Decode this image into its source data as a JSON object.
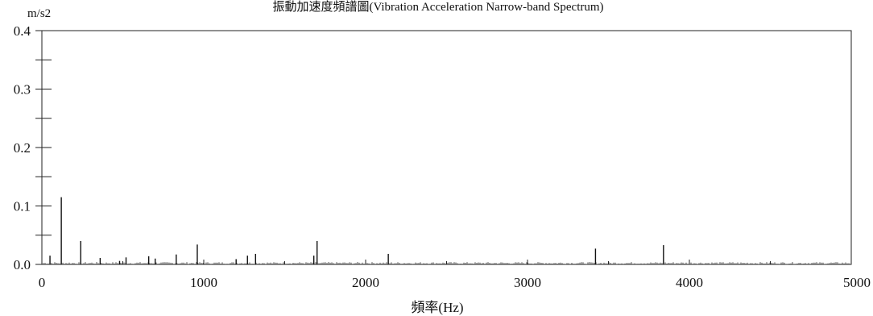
{
  "chart_data": {
    "type": "bar",
    "title": "振動加速度頻譜圖(Vibration Acceleration Narrow-band Spectrum)",
    "ylabel": "m/s2",
    "xlabel": "頻率(Hz)",
    "xlim": [
      0,
      5000
    ],
    "ylim": [
      0,
      0.4
    ],
    "x_ticks": [
      0,
      1000,
      2000,
      3000,
      4000,
      5000
    ],
    "y_ticks": [
      0.0,
      0.1,
      0.2,
      0.3,
      0.4
    ],
    "y_tick_labels": [
      "0.0",
      "0.1",
      "0.2",
      "0.3",
      "0.4"
    ],
    "grid": false,
    "series": [
      {
        "peaks": [
          {
            "x": 50,
            "y": 0.015
          },
          {
            "x": 120,
            "y": 0.115
          },
          {
            "x": 240,
            "y": 0.04
          },
          {
            "x": 360,
            "y": 0.011
          },
          {
            "x": 480,
            "y": 0.006
          },
          {
            "x": 520,
            "y": 0.012
          },
          {
            "x": 660,
            "y": 0.014
          },
          {
            "x": 700,
            "y": 0.01
          },
          {
            "x": 830,
            "y": 0.017
          },
          {
            "x": 960,
            "y": 0.034
          },
          {
            "x": 1200,
            "y": 0.009
          },
          {
            "x": 1270,
            "y": 0.015
          },
          {
            "x": 1320,
            "y": 0.018
          },
          {
            "x": 1680,
            "y": 0.015
          },
          {
            "x": 1700,
            "y": 0.04
          },
          {
            "x": 2140,
            "y": 0.018
          },
          {
            "x": 3420,
            "y": 0.027
          },
          {
            "x": 3840,
            "y": 0.033
          }
        ]
      }
    ]
  }
}
